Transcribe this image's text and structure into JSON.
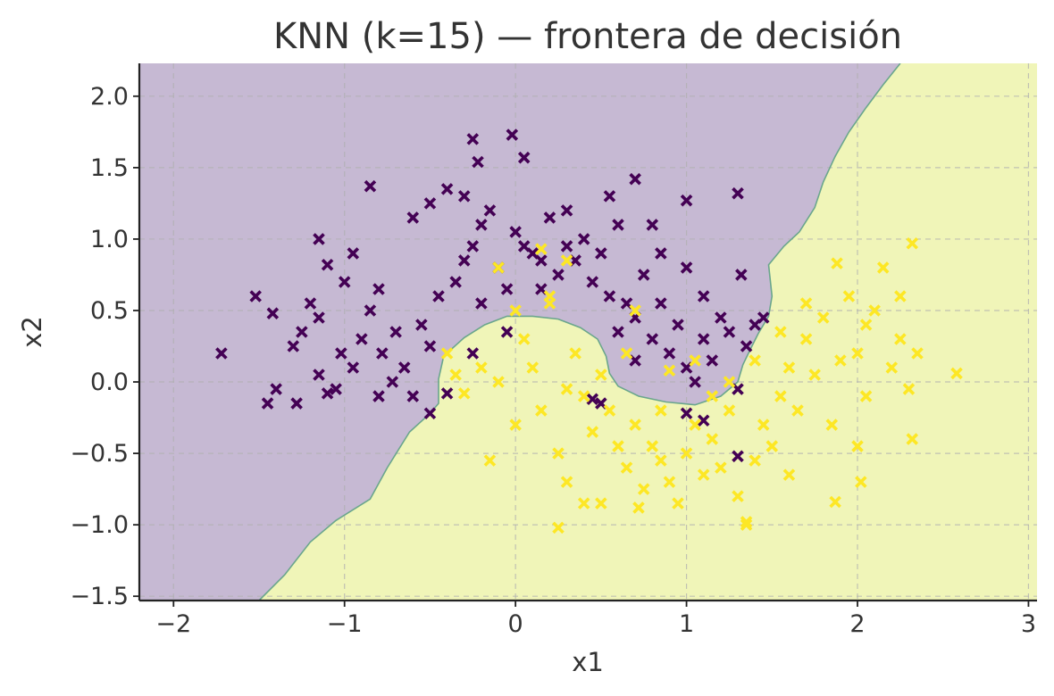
{
  "chart_data": {
    "type": "scatter",
    "title": "KNN (k=15) — frontera de decisión",
    "xlabel": "x1",
    "ylabel": "x2",
    "xlim": [
      -2.2,
      3.05
    ],
    "ylim": [
      -1.53,
      2.23
    ],
    "xticks": [
      -2,
      -1,
      0,
      1,
      2,
      3
    ],
    "yticks": [
      -1.5,
      -1.0,
      -0.5,
      0.0,
      0.5,
      1.0,
      1.5,
      2.0
    ],
    "xtick_labels": [
      "−2",
      "−1",
      "0",
      "1",
      "2",
      "3"
    ],
    "ytick_labels": [
      "−1.5",
      "−1.0",
      "−0.5",
      "0.0",
      "0.5",
      "1.0",
      "1.5",
      "2.0"
    ],
    "grid": true,
    "colors": {
      "class_0": "#440154",
      "class_1": "#fde725",
      "region_0": "#c6b9d3",
      "region_1": "#f0f5b8",
      "boundary": "#6aa68c"
    },
    "decision_boundary": [
      [
        -1.5,
        -1.53
      ],
      [
        -1.35,
        -1.35
      ],
      [
        -1.2,
        -1.12
      ],
      [
        -1.05,
        -0.97
      ],
      [
        -0.85,
        -0.82
      ],
      [
        -0.75,
        -0.6
      ],
      [
        -0.62,
        -0.35
      ],
      [
        -0.5,
        -0.22
      ],
      [
        -0.45,
        -0.15
      ],
      [
        -0.45,
        0.02
      ],
      [
        -0.42,
        0.18
      ],
      [
        -0.3,
        0.31
      ],
      [
        -0.18,
        0.4
      ],
      [
        -0.05,
        0.46
      ],
      [
        0.1,
        0.46
      ],
      [
        0.25,
        0.44
      ],
      [
        0.38,
        0.38
      ],
      [
        0.48,
        0.3
      ],
      [
        0.53,
        0.18
      ],
      [
        0.55,
        0.06
      ],
      [
        0.6,
        -0.03
      ],
      [
        0.72,
        -0.1
      ],
      [
        0.88,
        -0.14
      ],
      [
        1.05,
        -0.16
      ],
      [
        1.2,
        -0.1
      ],
      [
        1.3,
        0.0
      ],
      [
        1.33,
        0.12
      ],
      [
        1.37,
        0.22
      ],
      [
        1.42,
        0.34
      ],
      [
        1.48,
        0.46
      ],
      [
        1.5,
        0.6
      ],
      [
        1.48,
        0.82
      ],
      [
        1.57,
        0.95
      ],
      [
        1.66,
        1.05
      ],
      [
        1.75,
        1.22
      ],
      [
        1.8,
        1.4
      ],
      [
        1.87,
        1.58
      ],
      [
        1.95,
        1.75
      ],
      [
        2.05,
        1.92
      ],
      [
        2.15,
        2.08
      ],
      [
        2.25,
        2.23
      ]
    ],
    "series": [
      {
        "points": [
          [
            -1.72,
            0.2
          ],
          [
            -1.52,
            0.6
          ],
          [
            -1.42,
            0.48
          ],
          [
            -1.45,
            -0.15
          ],
          [
            -1.4,
            -0.05
          ],
          [
            -1.3,
            0.25
          ],
          [
            -1.25,
            0.35
          ],
          [
            -1.2,
            0.55
          ],
          [
            -1.28,
            -0.15
          ],
          [
            -1.15,
            0.05
          ],
          [
            -1.1,
            -0.08
          ],
          [
            -1.05,
            -0.05
          ],
          [
            -1.02,
            0.2
          ],
          [
            -0.95,
            0.1
          ],
          [
            -0.9,
            0.3
          ],
          [
            -0.85,
            0.5
          ],
          [
            -0.8,
            0.65
          ],
          [
            -0.78,
            0.2
          ],
          [
            -0.7,
            0.35
          ],
          [
            -0.72,
            0.0
          ],
          [
            -0.65,
            0.1
          ],
          [
            -0.6,
            -0.1
          ],
          [
            -0.55,
            0.4
          ],
          [
            -0.5,
            0.25
          ],
          [
            -0.45,
            0.6
          ],
          [
            -0.4,
            -0.08
          ],
          [
            -0.35,
            0.7
          ],
          [
            -0.3,
            0.85
          ],
          [
            -0.25,
            0.95
          ],
          [
            -0.2,
            1.1
          ],
          [
            -0.15,
            1.2
          ],
          [
            -0.1,
            0.8
          ],
          [
            -0.05,
            0.65
          ],
          [
            0.0,
            1.05
          ],
          [
            0.05,
            0.95
          ],
          [
            0.1,
            0.9
          ],
          [
            0.15,
            0.85
          ],
          [
            0.2,
            1.15
          ],
          [
            0.25,
            0.75
          ],
          [
            0.3,
            0.95
          ],
          [
            0.35,
            0.85
          ],
          [
            0.4,
            1.0
          ],
          [
            0.45,
            0.7
          ],
          [
            0.5,
            0.9
          ],
          [
            0.55,
            0.6
          ],
          [
            0.6,
            1.1
          ],
          [
            0.65,
            0.55
          ],
          [
            0.7,
            0.45
          ],
          [
            0.75,
            0.75
          ],
          [
            0.8,
            0.3
          ],
          [
            0.85,
            0.55
          ],
          [
            0.9,
            0.2
          ],
          [
            0.95,
            0.4
          ],
          [
            1.0,
            0.1
          ],
          [
            1.05,
            0.0
          ],
          [
            1.1,
            0.3
          ],
          [
            1.15,
            0.15
          ],
          [
            1.2,
            0.45
          ],
          [
            1.25,
            0.35
          ],
          [
            1.3,
            -0.05
          ],
          [
            1.35,
            0.25
          ],
          [
            1.4,
            0.4
          ],
          [
            1.45,
            0.45
          ],
          [
            1.3,
            1.32
          ],
          [
            1.0,
            1.27
          ],
          [
            0.7,
            1.42
          ],
          [
            0.55,
            1.3
          ],
          [
            0.05,
            1.57
          ],
          [
            -0.02,
            1.73
          ],
          [
            -0.22,
            1.54
          ],
          [
            -0.25,
            1.7
          ],
          [
            -0.85,
            1.37
          ],
          [
            -1.15,
            1.0
          ],
          [
            -1.1,
            0.82
          ],
          [
            -1.0,
            0.7
          ],
          [
            -0.95,
            0.9
          ],
          [
            -0.6,
            1.15
          ],
          [
            -0.5,
            1.25
          ],
          [
            -0.4,
            1.35
          ],
          [
            -0.3,
            1.3
          ],
          [
            0.3,
            1.2
          ],
          [
            0.8,
            1.1
          ],
          [
            0.85,
            0.9
          ],
          [
            1.0,
            0.8
          ],
          [
            1.1,
            0.6
          ],
          [
            1.32,
            0.75
          ],
          [
            -0.05,
            0.35
          ],
          [
            0.45,
            -0.12
          ],
          [
            0.5,
            -0.15
          ],
          [
            1.0,
            -0.22
          ],
          [
            1.1,
            -0.27
          ],
          [
            1.3,
            -0.52
          ],
          [
            -0.25,
            0.2
          ],
          [
            -0.5,
            -0.22
          ],
          [
            -0.8,
            -0.1
          ],
          [
            -1.15,
            0.45
          ],
          [
            -0.2,
            0.55
          ],
          [
            0.15,
            0.65
          ],
          [
            0.6,
            0.35
          ],
          [
            0.7,
            0.15
          ]
        ]
      },
      {
        "points": [
          [
            -0.4,
            0.2
          ],
          [
            -0.35,
            0.05
          ],
          [
            -0.3,
            -0.08
          ],
          [
            -0.2,
            0.1
          ],
          [
            -0.1,
            0.0
          ],
          [
            -0.15,
            -0.55
          ],
          [
            0.0,
            0.5
          ],
          [
            0.05,
            0.3
          ],
          [
            0.1,
            0.1
          ],
          [
            0.15,
            -0.2
          ],
          [
            0.2,
            0.6
          ],
          [
            0.25,
            -0.5
          ],
          [
            0.3,
            -0.7
          ],
          [
            0.35,
            0.2
          ],
          [
            0.4,
            -0.1
          ],
          [
            0.45,
            -0.35
          ],
          [
            0.5,
            -0.85
          ],
          [
            0.55,
            -0.2
          ],
          [
            0.6,
            -0.45
          ],
          [
            0.65,
            -0.6
          ],
          [
            0.7,
            -0.3
          ],
          [
            0.75,
            -0.75
          ],
          [
            0.8,
            -0.45
          ],
          [
            0.85,
            -0.55
          ],
          [
            0.9,
            -0.7
          ],
          [
            0.95,
            -0.85
          ],
          [
            1.0,
            -0.5
          ],
          [
            1.05,
            -0.3
          ],
          [
            1.1,
            -0.65
          ],
          [
            1.15,
            -0.4
          ],
          [
            1.2,
            -0.6
          ],
          [
            1.25,
            -0.2
          ],
          [
            1.3,
            -0.8
          ],
          [
            1.35,
            -1.0
          ],
          [
            1.4,
            -0.55
          ],
          [
            1.45,
            -0.3
          ],
          [
            1.5,
            -0.45
          ],
          [
            1.55,
            -0.1
          ],
          [
            1.6,
            0.1
          ],
          [
            1.65,
            -0.2
          ],
          [
            1.7,
            0.3
          ],
          [
            1.75,
            0.05
          ],
          [
            1.8,
            0.45
          ],
          [
            1.85,
            -0.3
          ],
          [
            1.9,
            0.15
          ],
          [
            1.95,
            0.6
          ],
          [
            2.0,
            0.2
          ],
          [
            2.05,
            -0.1
          ],
          [
            2.1,
            0.5
          ],
          [
            2.15,
            0.8
          ],
          [
            2.2,
            0.1
          ],
          [
            2.25,
            0.3
          ],
          [
            2.3,
            -0.05
          ],
          [
            2.35,
            0.2
          ],
          [
            2.32,
            0.97
          ],
          [
            2.58,
            0.06
          ],
          [
            2.32,
            -0.4
          ],
          [
            2.02,
            -0.7
          ],
          [
            1.87,
            -0.84
          ],
          [
            1.35,
            -0.98
          ],
          [
            0.25,
            -1.02
          ],
          [
            0.4,
            -0.85
          ],
          [
            0.72,
            -0.88
          ],
          [
            0.15,
            0.93
          ],
          [
            0.2,
            0.55
          ],
          [
            0.3,
            0.85
          ],
          [
            -0.1,
            0.8
          ],
          [
            0.65,
            0.2
          ],
          [
            0.7,
            0.5
          ],
          [
            0.9,
            0.08
          ],
          [
            1.05,
            0.15
          ],
          [
            1.25,
            0.0
          ],
          [
            1.4,
            0.15
          ],
          [
            1.55,
            0.35
          ],
          [
            1.7,
            0.55
          ],
          [
            1.88,
            0.83
          ],
          [
            2.05,
            0.4
          ],
          [
            2.25,
            0.6
          ],
          [
            0.0,
            -0.3
          ],
          [
            0.3,
            -0.05
          ],
          [
            0.5,
            0.05
          ],
          [
            0.85,
            -0.2
          ],
          [
            1.15,
            -0.1
          ],
          [
            1.6,
            -0.65
          ],
          [
            2.0,
            -0.45
          ]
        ]
      }
    ]
  }
}
